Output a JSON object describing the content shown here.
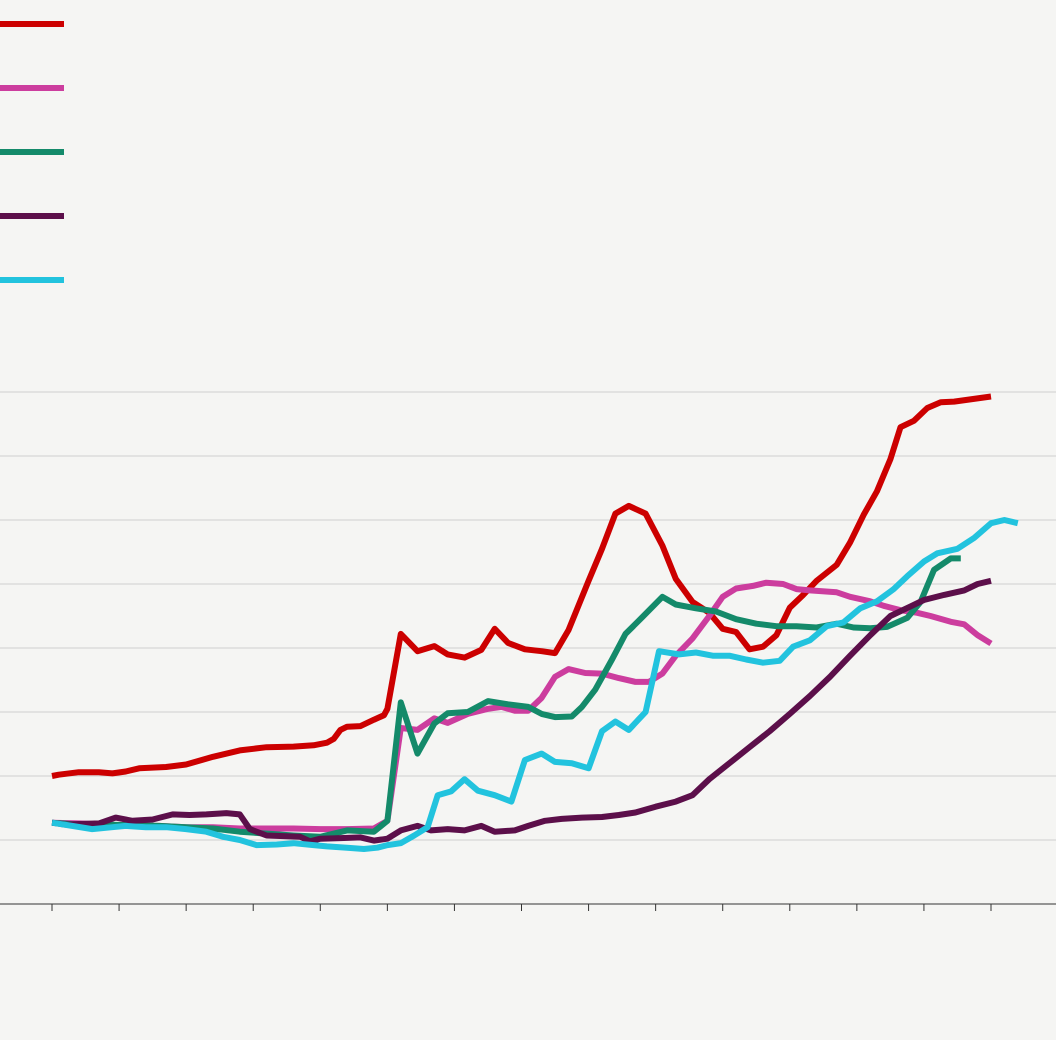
{
  "chart_data": {
    "type": "line",
    "title": "",
    "xlabel": "",
    "ylabel": "",
    "xlim": [
      0,
      14
    ],
    "ylim": [
      0,
      8
    ],
    "grid": true,
    "legend": "top-left",
    "x_tick_count": 15,
    "series": [
      {
        "color": "#cc0000",
        "points": [
          [
            0,
            2.0
          ],
          [
            0.1,
            2.02
          ],
          [
            0.4,
            2.06
          ],
          [
            0.7,
            2.06
          ],
          [
            0.9,
            2.04
          ],
          [
            1.1,
            2.07
          ],
          [
            1.3,
            2.12
          ],
          [
            1.7,
            2.14
          ],
          [
            2.0,
            2.18
          ],
          [
            2.4,
            2.3
          ],
          [
            2.8,
            2.4
          ],
          [
            3.2,
            2.45
          ],
          [
            3.6,
            2.46
          ],
          [
            3.9,
            2.48
          ],
          [
            4.1,
            2.52
          ],
          [
            4.2,
            2.58
          ],
          [
            4.3,
            2.72
          ],
          [
            4.4,
            2.77
          ],
          [
            4.6,
            2.78
          ],
          [
            4.8,
            2.88
          ],
          [
            4.95,
            2.95
          ],
          [
            5.0,
            3.05
          ],
          [
            5.2,
            4.22
          ],
          [
            5.45,
            3.95
          ],
          [
            5.7,
            4.03
          ],
          [
            5.9,
            3.9
          ],
          [
            6.15,
            3.85
          ],
          [
            6.4,
            3.97
          ],
          [
            6.6,
            4.3
          ],
          [
            6.8,
            4.08
          ],
          [
            7.05,
            3.98
          ],
          [
            7.3,
            3.95
          ],
          [
            7.5,
            3.92
          ],
          [
            7.7,
            4.28
          ],
          [
            8.0,
            5.05
          ],
          [
            8.2,
            5.55
          ],
          [
            8.4,
            6.1
          ],
          [
            8.6,
            6.22
          ],
          [
            8.85,
            6.1
          ],
          [
            9.1,
            5.6
          ],
          [
            9.3,
            5.08
          ],
          [
            9.55,
            4.72
          ],
          [
            9.8,
            4.55
          ],
          [
            10.0,
            4.3
          ],
          [
            10.2,
            4.25
          ],
          [
            10.4,
            3.98
          ],
          [
            10.6,
            4.02
          ],
          [
            10.8,
            4.2
          ],
          [
            11.0,
            4.63
          ],
          [
            11.2,
            4.83
          ],
          [
            11.4,
            5.05
          ],
          [
            11.7,
            5.3
          ],
          [
            11.9,
            5.65
          ],
          [
            12.1,
            6.08
          ],
          [
            12.3,
            6.45
          ],
          [
            12.5,
            6.95
          ],
          [
            12.65,
            7.45
          ],
          [
            12.85,
            7.55
          ],
          [
            13.05,
            7.75
          ],
          [
            13.25,
            7.84
          ],
          [
            13.45,
            7.85
          ],
          [
            14.0,
            7.93
          ]
        ]
      },
      {
        "color": "#cc3d9e",
        "points": [
          [
            0,
            1.27
          ],
          [
            0.4,
            1.26
          ],
          [
            0.8,
            1.24
          ],
          [
            1.2,
            1.22
          ],
          [
            1.6,
            1.22
          ],
          [
            2.0,
            1.2
          ],
          [
            2.4,
            1.2
          ],
          [
            2.8,
            1.18
          ],
          [
            3.2,
            1.18
          ],
          [
            3.6,
            1.18
          ],
          [
            4.0,
            1.17
          ],
          [
            4.4,
            1.17
          ],
          [
            4.8,
            1.18
          ],
          [
            5.0,
            1.3
          ],
          [
            5.2,
            2.75
          ],
          [
            5.45,
            2.72
          ],
          [
            5.7,
            2.9
          ],
          [
            5.9,
            2.83
          ],
          [
            6.2,
            2.97
          ],
          [
            6.5,
            3.05
          ],
          [
            6.7,
            3.08
          ],
          [
            6.9,
            3.02
          ],
          [
            7.1,
            3.02
          ],
          [
            7.3,
            3.22
          ],
          [
            7.5,
            3.55
          ],
          [
            7.7,
            3.67
          ],
          [
            7.95,
            3.61
          ],
          [
            8.2,
            3.6
          ],
          [
            8.45,
            3.53
          ],
          [
            8.7,
            3.47
          ],
          [
            8.9,
            3.47
          ],
          [
            9.1,
            3.6
          ],
          [
            9.3,
            3.88
          ],
          [
            9.55,
            4.15
          ],
          [
            9.8,
            4.5
          ],
          [
            10.0,
            4.8
          ],
          [
            10.2,
            4.93
          ],
          [
            10.45,
            4.97
          ],
          [
            10.65,
            5.02
          ],
          [
            10.9,
            5.0
          ],
          [
            11.1,
            4.92
          ],
          [
            11.3,
            4.9
          ],
          [
            11.7,
            4.87
          ],
          [
            11.9,
            4.8
          ],
          [
            12.2,
            4.73
          ],
          [
            12.4,
            4.66
          ],
          [
            12.65,
            4.59
          ],
          [
            12.9,
            4.55
          ],
          [
            13.1,
            4.5
          ],
          [
            13.4,
            4.41
          ],
          [
            13.6,
            4.37
          ],
          [
            13.8,
            4.2
          ],
          [
            14.0,
            4.07
          ]
        ]
      },
      {
        "color": "#148a6a",
        "points": [
          [
            0,
            1.27
          ],
          [
            0.4,
            1.24
          ],
          [
            0.8,
            1.24
          ],
          [
            1.2,
            1.23
          ],
          [
            1.6,
            1.22
          ],
          [
            2.0,
            1.2
          ],
          [
            2.4,
            1.18
          ],
          [
            2.8,
            1.13
          ],
          [
            3.2,
            1.1
          ],
          [
            3.6,
            1.07
          ],
          [
            4.0,
            1.05
          ],
          [
            4.4,
            1.15
          ],
          [
            4.8,
            1.13
          ],
          [
            5.0,
            1.3
          ],
          [
            5.2,
            3.15
          ],
          [
            5.45,
            2.35
          ],
          [
            5.7,
            2.82
          ],
          [
            5.9,
            2.98
          ],
          [
            6.2,
            3.0
          ],
          [
            6.5,
            3.17
          ],
          [
            6.8,
            3.12
          ],
          [
            7.1,
            3.08
          ],
          [
            7.3,
            2.97
          ],
          [
            7.5,
            2.92
          ],
          [
            7.75,
            2.93
          ],
          [
            7.9,
            3.08
          ],
          [
            8.1,
            3.35
          ],
          [
            8.35,
            3.82
          ],
          [
            8.55,
            4.22
          ],
          [
            8.8,
            4.48
          ],
          [
            9.1,
            4.8
          ],
          [
            9.3,
            4.68
          ],
          [
            9.6,
            4.62
          ],
          [
            9.9,
            4.57
          ],
          [
            10.2,
            4.45
          ],
          [
            10.5,
            4.38
          ],
          [
            10.8,
            4.34
          ],
          [
            11.1,
            4.34
          ],
          [
            11.4,
            4.32
          ],
          [
            11.7,
            4.38
          ],
          [
            11.95,
            4.32
          ],
          [
            12.2,
            4.31
          ],
          [
            12.45,
            4.33
          ],
          [
            12.75,
            4.47
          ],
          [
            12.95,
            4.72
          ],
          [
            13.15,
            5.22
          ],
          [
            13.4,
            5.4
          ],
          [
            13.55,
            5.4
          ]
        ]
      },
      {
        "color": "#5c0f4a",
        "points": [
          [
            0,
            1.27
          ],
          [
            0.2,
            1.24
          ],
          [
            0.4,
            1.25
          ],
          [
            0.7,
            1.26
          ],
          [
            0.95,
            1.35
          ],
          [
            1.2,
            1.3
          ],
          [
            1.5,
            1.32
          ],
          [
            1.8,
            1.4
          ],
          [
            2.05,
            1.39
          ],
          [
            2.3,
            1.4
          ],
          [
            2.6,
            1.42
          ],
          [
            2.8,
            1.4
          ],
          [
            2.95,
            1.17
          ],
          [
            3.2,
            1.07
          ],
          [
            3.5,
            1.06
          ],
          [
            3.7,
            1.05
          ],
          [
            3.85,
            0.98
          ],
          [
            4.0,
            1.02
          ],
          [
            4.3,
            1.03
          ],
          [
            4.6,
            1.04
          ],
          [
            4.8,
            0.99
          ],
          [
            5.0,
            1.02
          ],
          [
            5.2,
            1.15
          ],
          [
            5.45,
            1.22
          ],
          [
            5.65,
            1.15
          ],
          [
            5.9,
            1.17
          ],
          [
            6.15,
            1.15
          ],
          [
            6.4,
            1.22
          ],
          [
            6.6,
            1.13
          ],
          [
            6.9,
            1.15
          ],
          [
            7.1,
            1.22
          ],
          [
            7.35,
            1.3
          ],
          [
            7.6,
            1.33
          ],
          [
            7.9,
            1.35
          ],
          [
            8.2,
            1.36
          ],
          [
            8.45,
            1.39
          ],
          [
            8.7,
            1.43
          ],
          [
            9.0,
            1.52
          ],
          [
            9.3,
            1.6
          ],
          [
            9.55,
            1.7
          ],
          [
            9.8,
            1.95
          ],
          [
            10.1,
            2.2
          ],
          [
            10.4,
            2.45
          ],
          [
            10.7,
            2.7
          ],
          [
            11.0,
            2.97
          ],
          [
            11.3,
            3.25
          ],
          [
            11.6,
            3.55
          ],
          [
            11.9,
            3.88
          ],
          [
            12.2,
            4.2
          ],
          [
            12.5,
            4.5
          ],
          [
            12.8,
            4.65
          ],
          [
            13.0,
            4.75
          ],
          [
            13.3,
            4.83
          ],
          [
            13.6,
            4.9
          ],
          [
            13.8,
            5.0
          ],
          [
            14.0,
            5.05
          ]
        ]
      },
      {
        "color": "#22c3de",
        "points": [
          [
            0,
            1.27
          ],
          [
            0.3,
            1.22
          ],
          [
            0.6,
            1.17
          ],
          [
            0.9,
            1.2
          ],
          [
            1.1,
            1.22
          ],
          [
            1.4,
            1.2
          ],
          [
            1.7,
            1.2
          ],
          [
            2.0,
            1.17
          ],
          [
            2.3,
            1.13
          ],
          [
            2.55,
            1.05
          ],
          [
            2.8,
            1.0
          ],
          [
            3.05,
            0.92
          ],
          [
            3.35,
            0.93
          ],
          [
            3.6,
            0.95
          ],
          [
            3.9,
            0.92
          ],
          [
            4.1,
            0.9
          ],
          [
            4.4,
            0.88
          ],
          [
            4.65,
            0.86
          ],
          [
            4.85,
            0.88
          ],
          [
            5.0,
            0.92
          ],
          [
            5.2,
            0.95
          ],
          [
            5.4,
            1.07
          ],
          [
            5.6,
            1.2
          ],
          [
            5.75,
            1.7
          ],
          [
            5.95,
            1.76
          ],
          [
            6.15,
            1.95
          ],
          [
            6.35,
            1.77
          ],
          [
            6.6,
            1.7
          ],
          [
            6.85,
            1.6
          ],
          [
            7.05,
            2.25
          ],
          [
            7.3,
            2.35
          ],
          [
            7.5,
            2.22
          ],
          [
            7.75,
            2.2
          ],
          [
            8.0,
            2.12
          ],
          [
            8.2,
            2.7
          ],
          [
            8.4,
            2.85
          ],
          [
            8.6,
            2.72
          ],
          [
            8.85,
            3.0
          ],
          [
            9.05,
            3.95
          ],
          [
            9.35,
            3.9
          ],
          [
            9.6,
            3.93
          ],
          [
            9.85,
            3.88
          ],
          [
            10.1,
            3.88
          ],
          [
            10.35,
            3.82
          ],
          [
            10.6,
            3.77
          ],
          [
            10.85,
            3.8
          ],
          [
            11.05,
            4.02
          ],
          [
            11.3,
            4.12
          ],
          [
            11.55,
            4.34
          ],
          [
            11.8,
            4.4
          ],
          [
            12.05,
            4.62
          ],
          [
            12.3,
            4.73
          ],
          [
            12.55,
            4.92
          ],
          [
            12.75,
            5.12
          ],
          [
            13.0,
            5.35
          ],
          [
            13.2,
            5.48
          ],
          [
            13.5,
            5.55
          ],
          [
            13.75,
            5.72
          ],
          [
            14.0,
            5.95
          ],
          [
            14.2,
            6.0
          ],
          [
            14.4,
            5.95
          ]
        ]
      }
    ]
  }
}
